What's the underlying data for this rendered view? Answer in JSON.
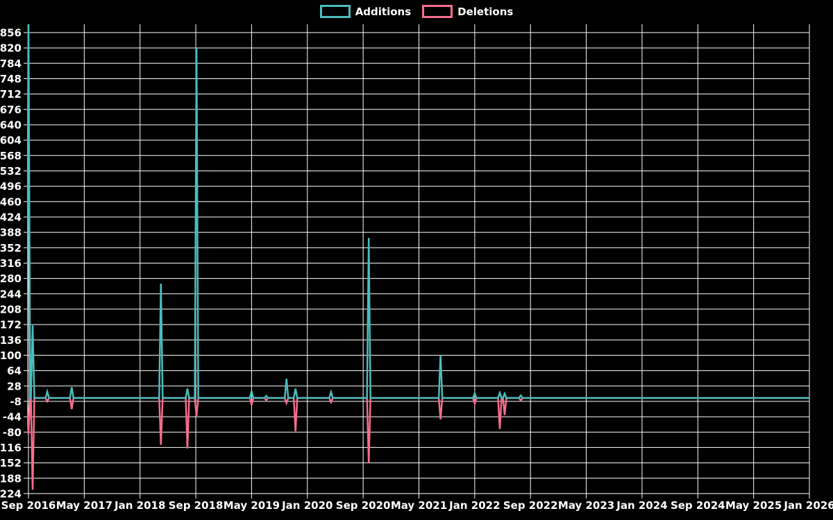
{
  "legend": {
    "items": [
      {
        "label": "Additions",
        "color": "#4abdbd"
      },
      {
        "label": "Deletions",
        "color": "#f76d8e"
      }
    ]
  },
  "colors": {
    "background": "#000000",
    "grid": "#ffffff",
    "axis_label": "#ffffff",
    "additions": "#4abdbd",
    "deletions": "#f76d8e"
  },
  "chart_data": {
    "type": "line",
    "title": "",
    "xlabel": "",
    "ylabel": "",
    "grid": true,
    "legend_position": "top-center",
    "x_axis": {
      "tick_labels": [
        "Sep 2016",
        "May 2017",
        "Jan 2018",
        "Sep 2018",
        "May 2019",
        "Jan 2020",
        "Sep 2020",
        "May 2021",
        "Jan 2022",
        "Sep 2022",
        "May 2023",
        "Jan 2024",
        "Sep 2024",
        "May 2025",
        "Jan 2026"
      ],
      "months_between_ticks": 8,
      "total_months": 112
    },
    "y_axis": {
      "tick_values": [
        856,
        820,
        784,
        748,
        712,
        676,
        640,
        604,
        568,
        532,
        496,
        460,
        424,
        388,
        352,
        316,
        280,
        244,
        208,
        172,
        136,
        100,
        64,
        28,
        -8,
        -44,
        -80,
        -116,
        -152,
        -188,
        -224
      ],
      "visible_min": -232,
      "visible_max": 892
    },
    "notes": "x of each point given as months after Sep 2016; first Additions spike exceeds the visible axis range and is clipped at the top of the plot; both series sit at 0 between spikes and the flat line runs through Jan 2026.",
    "series": [
      {
        "name": "Additions",
        "color": "#4abdbd",
        "points": [
          {
            "m": 0.0,
            "v": 900
          },
          {
            "m": 0.6,
            "v": 170
          },
          {
            "m": 2.7,
            "v": 15
          },
          {
            "m": 6.2,
            "v": 25
          },
          {
            "m": 19.0,
            "v": 268
          },
          {
            "m": 22.8,
            "v": 22
          },
          {
            "m": 24.1,
            "v": 820
          },
          {
            "m": 32.0,
            "v": 16
          },
          {
            "m": 34.1,
            "v": 5
          },
          {
            "m": 37.0,
            "v": 45
          },
          {
            "m": 38.3,
            "v": 22
          },
          {
            "m": 43.4,
            "v": 14
          },
          {
            "m": 48.8,
            "v": 375
          },
          {
            "m": 59.1,
            "v": 100
          },
          {
            "m": 64.0,
            "v": 11
          },
          {
            "m": 67.6,
            "v": 12
          },
          {
            "m": 68.3,
            "v": 10
          },
          {
            "m": 70.6,
            "v": 6
          }
        ]
      },
      {
        "name": "Deletions",
        "color": "#f76d8e",
        "points": [
          {
            "m": 0.0,
            "v": -85
          },
          {
            "m": 0.6,
            "v": -215
          },
          {
            "m": 2.7,
            "v": -8
          },
          {
            "m": 6.2,
            "v": -26
          },
          {
            "m": 19.0,
            "v": -110
          },
          {
            "m": 22.8,
            "v": -118
          },
          {
            "m": 24.1,
            "v": -42
          },
          {
            "m": 32.0,
            "v": -16
          },
          {
            "m": 34.1,
            "v": -5
          },
          {
            "m": 37.0,
            "v": -12
          },
          {
            "m": 38.3,
            "v": -78
          },
          {
            "m": 43.4,
            "v": -10
          },
          {
            "m": 48.8,
            "v": -152
          },
          {
            "m": 59.1,
            "v": -50
          },
          {
            "m": 64.0,
            "v": -13
          },
          {
            "m": 67.6,
            "v": -73
          },
          {
            "m": 68.3,
            "v": -40
          },
          {
            "m": 70.6,
            "v": -6
          }
        ]
      }
    ]
  }
}
